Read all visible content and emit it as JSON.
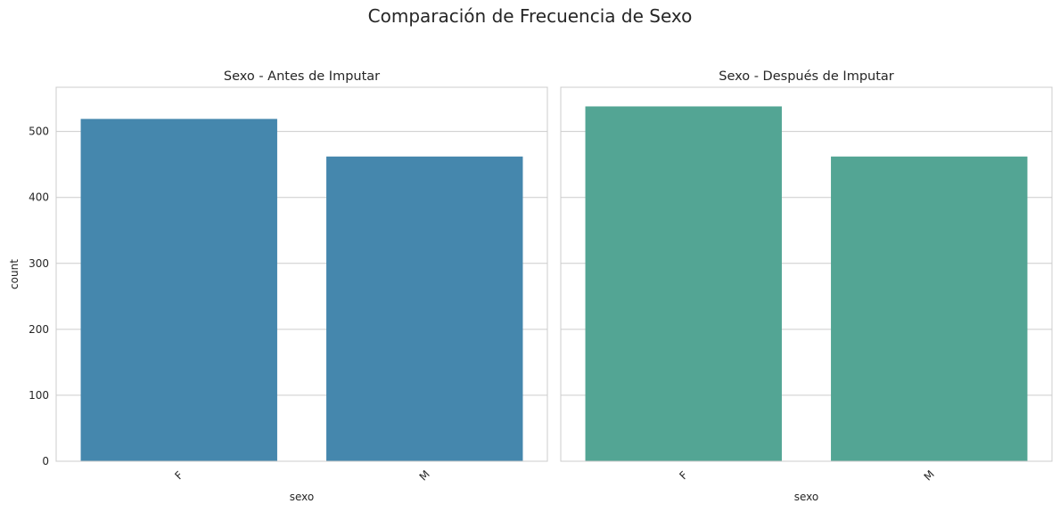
{
  "figure": {
    "suptitle": "Comparación de Frecuencia de Sexo"
  },
  "chart_data": [
    {
      "type": "bar",
      "title": "Sexo - Antes de Imputar",
      "xlabel": "sexo",
      "ylabel": "count",
      "categories": [
        "F",
        "M"
      ],
      "values": [
        519,
        462
      ],
      "ylim": [
        0,
        567
      ],
      "yticks": [
        0,
        100,
        200,
        300,
        400,
        500
      ],
      "grid": "horizontal",
      "color": "#4587ad",
      "xtick_rotation": 45
    },
    {
      "type": "bar",
      "title": "Sexo - Después de Imputar",
      "xlabel": "sexo",
      "ylabel": "",
      "categories": [
        "F",
        "M"
      ],
      "values": [
        538,
        462
      ],
      "ylim": [
        0,
        567
      ],
      "yticks": [
        0,
        100,
        200,
        300,
        400,
        500
      ],
      "grid": "horizontal",
      "color": "#53a594",
      "xtick_rotation": 45
    }
  ]
}
